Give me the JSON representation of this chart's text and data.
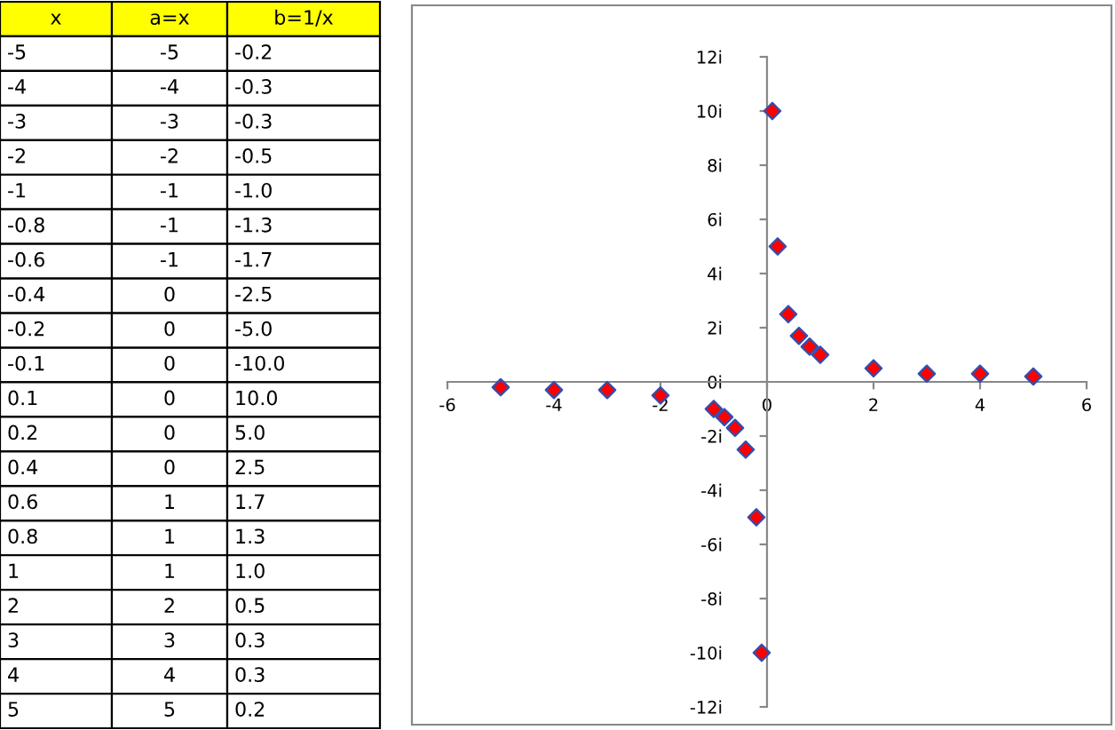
{
  "chart_data": [
    {
      "type": "other",
      "annotations": [
        "x",
        "a=x",
        "b=1/x",
        "-5",
        "-5",
        "-0.2",
        "-4",
        "-4",
        "-0.3",
        "-3",
        "-3",
        "-0.3",
        "-2",
        "-2",
        "-0.5",
        "-1",
        "-1",
        "-1.0",
        "-0.8",
        "-1",
        "-1.3",
        "-0.6",
        "-1",
        "-1.7",
        "-0.4",
        "0",
        "-2.5",
        "-0.2",
        "0",
        "-5.0",
        "-0.1",
        "0",
        "-10.0",
        "0.1",
        "0",
        "10.0",
        "0.2",
        "0",
        "5.0",
        "0.4",
        "0",
        "2.5",
        "0.6",
        "1",
        "1.7",
        "0.8",
        "1",
        "1.3",
        "1",
        "1",
        "1.0",
        "2",
        "2",
        "0.5",
        "3",
        "3",
        "0.3",
        "4",
        "4",
        "0.3",
        "5",
        "5",
        "0.2"
      ]
    },
    {
      "type": "scatter",
      "marker": "diamond",
      "x": [
        -5,
        -4,
        -3,
        -2,
        -1,
        -0.8,
        -0.6,
        -0.4,
        -0.2,
        -0.1,
        0.1,
        0.2,
        0.4,
        0.6,
        0.8,
        1,
        2,
        3,
        4,
        5
      ],
      "series": [
        {
          "color": "#ff0000",
          "values": [
            -0.2,
            -0.3,
            -0.3,
            -0.5,
            -1.0,
            -1.3,
            -1.7,
            -2.5,
            -5.0,
            -10.0,
            10.0,
            5.0,
            2.5,
            1.7,
            1.3,
            1.0,
            0.5,
            0.3,
            0.3,
            0.2
          ]
        }
      ],
      "xlim": [
        -6,
        6
      ],
      "xticks": [
        -6,
        -4,
        -2,
        0,
        2,
        4,
        6
      ],
      "ylim": [
        -12,
        12
      ],
      "yticks": [
        {
          "value": -12,
          "label": "-12i"
        },
        {
          "value": -10,
          "label": "-10i"
        },
        {
          "value": -8,
          "label": "-8i"
        },
        {
          "value": -6,
          "label": "-6i"
        },
        {
          "value": -4,
          "label": "-4i"
        },
        {
          "value": -2,
          "label": "-2i"
        },
        {
          "value": 0,
          "label": "0i"
        },
        {
          "value": 2,
          "label": "2i"
        },
        {
          "value": 4,
          "label": "4i"
        },
        {
          "value": 6,
          "label": "6i"
        },
        {
          "value": 8,
          "label": "8i"
        },
        {
          "value": 10,
          "label": "10i"
        },
        {
          "value": 12,
          "label": "12i"
        }
      ]
    }
  ]
}
